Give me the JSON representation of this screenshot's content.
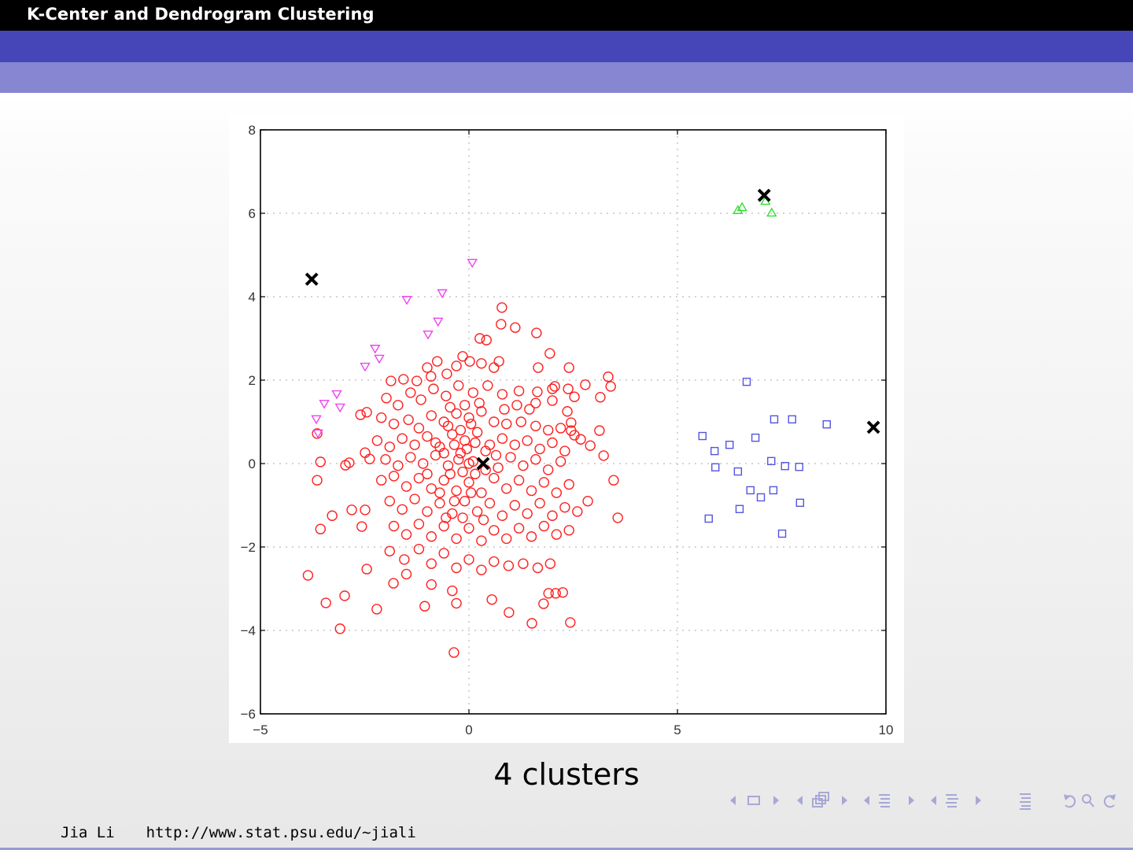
{
  "slide": {
    "title": "K-Center and Dendrogram Clustering",
    "caption": "4 clusters",
    "footer_author": "Jia Li",
    "footer_url": "http://www.stat.psu.edu/∼jiali"
  },
  "nav_icons": [
    "arrow-left-icon",
    "frame-icon",
    "arrow-right-icon",
    "arrow-left-icon",
    "frames-icon",
    "arrow-right-icon",
    "arrow-left-icon",
    "section-icon",
    "arrow-right-icon",
    "arrow-left-icon",
    "subsection-icon",
    "arrow-right-icon",
    "toc-icon",
    "undo-icon",
    "search-icon",
    "redo-icon"
  ],
  "colors": {
    "titlebar": "#000000",
    "band1": "#4646b9",
    "band2": "#8686d2",
    "nav": "#a8a8d6",
    "red": "#ff2020",
    "magenta": "#ee44ee",
    "green": "#33dd33",
    "blue": "#5555dd"
  },
  "chart_data": {
    "type": "scatter",
    "title": "",
    "xlabel": "",
    "ylabel": "",
    "xlim": [
      -5,
      10
    ],
    "ylim": [
      -6,
      8
    ],
    "xticks": [
      -5,
      0,
      5,
      10
    ],
    "xtick_labels": [
      "−5",
      "0",
      "5",
      "10"
    ],
    "yticks": [
      -6,
      -4,
      -2,
      0,
      2,
      4,
      6,
      8
    ],
    "ytick_labels": [
      "−6",
      "−4",
      "−2",
      "0",
      "2",
      "4",
      "6",
      "8"
    ],
    "grid": "dotted",
    "series": [
      {
        "name": "cluster-red",
        "marker": "circle",
        "color": "#ff2020",
        "points": [
          [
            -3.64,
            -0.4
          ],
          [
            -3.28,
            -1.25
          ],
          [
            -3.56,
            -1.57
          ],
          [
            -2.81,
            -1.11
          ],
          [
            -2.49,
            -1.11
          ],
          [
            -2.57,
            -1.51
          ],
          [
            -3.86,
            -2.68
          ],
          [
            -2.45,
            -2.53
          ],
          [
            -3.43,
            -3.34
          ],
          [
            -2.98,
            -3.17
          ],
          [
            -2.21,
            -3.49
          ],
          [
            -3.09,
            -3.96
          ],
          [
            -1.81,
            -2.87
          ],
          [
            -1.06,
            -3.42
          ],
          [
            -0.36,
            -4.53
          ],
          [
            0.55,
            -3.26
          ],
          [
            0.96,
            -3.57
          ],
          [
            1.51,
            -3.83
          ],
          [
            2.43,
            -3.81
          ],
          [
            1.79,
            -3.36
          ],
          [
            1.91,
            -3.11
          ],
          [
            2.25,
            -3.09
          ],
          [
            2.08,
            -3.11
          ],
          [
            3.47,
            -0.4
          ],
          [
            3.57,
            -1.3
          ],
          [
            3.23,
            0.19
          ],
          [
            3.4,
            1.85
          ],
          [
            3.34,
            2.08
          ],
          [
            3.15,
            1.59
          ],
          [
            2.79,
            1.89
          ],
          [
            2.91,
            0.43
          ],
          [
            3.13,
            0.79
          ],
          [
            0.79,
            3.74
          ],
          [
            0.77,
            3.34
          ],
          [
            1.11,
            3.26
          ],
          [
            1.62,
            3.13
          ],
          [
            0.42,
            2.96
          ],
          [
            0.26,
            3.0
          ],
          [
            1.94,
            2.64
          ],
          [
            1.66,
            2.3
          ],
          [
            2.4,
            2.3
          ],
          [
            1.64,
            1.72
          ],
          [
            2.0,
            1.79
          ],
          [
            2.38,
            1.79
          ],
          [
            2.53,
            1.6
          ],
          [
            2.06,
            1.85
          ],
          [
            1.6,
            1.45
          ],
          [
            2.0,
            1.51
          ],
          [
            2.36,
            1.25
          ],
          [
            2.45,
            0.98
          ],
          [
            2.45,
            0.79
          ],
          [
            2.53,
            0.68
          ],
          [
            2.68,
            0.58
          ],
          [
            -3.56,
            0.04
          ],
          [
            -3.64,
            0.72
          ],
          [
            -2.96,
            -0.04
          ],
          [
            -2.87,
            0.02
          ],
          [
            -2.49,
            0.26
          ],
          [
            -2.38,
            0.11
          ],
          [
            -2.6,
            1.17
          ],
          [
            -2.45,
            1.23
          ],
          [
            -1.87,
            1.98
          ],
          [
            -1.57,
            2.02
          ],
          [
            -1.25,
            1.98
          ],
          [
            -0.91,
            2.09
          ],
          [
            -0.53,
            2.15
          ],
          [
            -0.3,
            2.34
          ],
          [
            -0.15,
            2.57
          ],
          [
            0.02,
            2.45
          ],
          [
            0.3,
            2.4
          ],
          [
            0.6,
            2.3
          ],
          [
            0.72,
            2.45
          ],
          [
            -0.76,
            2.45
          ],
          [
            -1.0,
            2.3
          ],
          [
            -1.98,
            1.57
          ],
          [
            -1.7,
            1.4
          ],
          [
            -1.4,
            1.7
          ],
          [
            -1.15,
            1.53
          ],
          [
            -0.85,
            1.79
          ],
          [
            -0.55,
            1.62
          ],
          [
            -0.25,
            1.87
          ],
          [
            0.1,
            1.7
          ],
          [
            0.45,
            1.87
          ],
          [
            0.8,
            1.66
          ],
          [
            1.2,
            1.74
          ],
          [
            1.45,
            1.3
          ],
          [
            1.15,
            1.4
          ],
          [
            0.85,
            1.3
          ],
          [
            -2.1,
            1.1
          ],
          [
            -1.8,
            0.95
          ],
          [
            -1.45,
            1.05
          ],
          [
            -1.2,
            0.85
          ],
          [
            -0.9,
            1.15
          ],
          [
            -0.6,
            1.0
          ],
          [
            -0.3,
            1.2
          ],
          [
            0.0,
            1.1
          ],
          [
            0.3,
            1.25
          ],
          [
            0.6,
            1.0
          ],
          [
            0.9,
            0.95
          ],
          [
            1.25,
            1.0
          ],
          [
            1.6,
            0.9
          ],
          [
            1.9,
            0.8
          ],
          [
            2.2,
            0.85
          ],
          [
            -2.2,
            0.55
          ],
          [
            -1.9,
            0.4
          ],
          [
            -1.6,
            0.6
          ],
          [
            -1.3,
            0.45
          ],
          [
            -1.0,
            0.65
          ],
          [
            -0.7,
            0.4
          ],
          [
            -0.4,
            0.7
          ],
          [
            -0.1,
            0.55
          ],
          [
            0.2,
            0.75
          ],
          [
            0.5,
            0.45
          ],
          [
            0.8,
            0.6
          ],
          [
            1.1,
            0.45
          ],
          [
            1.4,
            0.55
          ],
          [
            1.7,
            0.35
          ],
          [
            2.0,
            0.5
          ],
          [
            2.3,
            0.3
          ],
          [
            -2.0,
            0.1
          ],
          [
            -1.7,
            -0.05
          ],
          [
            -1.4,
            0.15
          ],
          [
            -1.1,
            0.0
          ],
          [
            -0.8,
            0.2
          ],
          [
            -0.5,
            -0.05
          ],
          [
            -0.2,
            0.25
          ],
          [
            0.1,
            0.05
          ],
          [
            0.4,
            0.3
          ],
          [
            0.7,
            -0.1
          ],
          [
            1.0,
            0.15
          ],
          [
            1.3,
            -0.05
          ],
          [
            1.6,
            0.1
          ],
          [
            1.9,
            -0.15
          ],
          [
            2.2,
            0.05
          ],
          [
            -2.1,
            -0.4
          ],
          [
            -1.8,
            -0.3
          ],
          [
            -1.5,
            -0.55
          ],
          [
            -1.2,
            -0.35
          ],
          [
            -0.9,
            -0.6
          ],
          [
            -0.6,
            -0.4
          ],
          [
            -0.3,
            -0.65
          ],
          [
            0.0,
            -0.45
          ],
          [
            0.3,
            -0.7
          ],
          [
            0.6,
            -0.35
          ],
          [
            0.9,
            -0.6
          ],
          [
            1.2,
            -0.4
          ],
          [
            1.5,
            -0.65
          ],
          [
            1.8,
            -0.45
          ],
          [
            2.1,
            -0.7
          ],
          [
            2.4,
            -0.5
          ],
          [
            -1.9,
            -0.9
          ],
          [
            -1.6,
            -1.1
          ],
          [
            -1.3,
            -0.85
          ],
          [
            -1.0,
            -1.15
          ],
          [
            -0.7,
            -0.95
          ],
          [
            -0.4,
            -1.2
          ],
          [
            -0.1,
            -0.9
          ],
          [
            0.2,
            -1.15
          ],
          [
            0.5,
            -0.95
          ],
          [
            0.8,
            -1.25
          ],
          [
            1.1,
            -1.0
          ],
          [
            1.4,
            -1.2
          ],
          [
            1.7,
            -0.95
          ],
          [
            2.0,
            -1.25
          ],
          [
            2.3,
            -1.05
          ],
          [
            2.6,
            -1.15
          ],
          [
            2.85,
            -0.9
          ],
          [
            -1.8,
            -1.5
          ],
          [
            -1.5,
            -1.7
          ],
          [
            -1.2,
            -1.45
          ],
          [
            -0.9,
            -1.75
          ],
          [
            -0.6,
            -1.5
          ],
          [
            -0.3,
            -1.8
          ],
          [
            0.0,
            -1.55
          ],
          [
            0.3,
            -1.85
          ],
          [
            0.6,
            -1.6
          ],
          [
            0.9,
            -1.8
          ],
          [
            1.2,
            -1.55
          ],
          [
            1.5,
            -1.75
          ],
          [
            1.8,
            -1.5
          ],
          [
            2.1,
            -1.7
          ],
          [
            2.4,
            -1.6
          ],
          [
            -1.9,
            -2.1
          ],
          [
            -1.55,
            -2.3
          ],
          [
            -1.2,
            -2.05
          ],
          [
            -0.9,
            -2.4
          ],
          [
            -0.6,
            -2.15
          ],
          [
            -0.3,
            -2.5
          ],
          [
            0.0,
            -2.3
          ],
          [
            0.3,
            -2.55
          ],
          [
            0.6,
            -2.35
          ],
          [
            0.95,
            -2.45
          ],
          [
            1.3,
            -2.4
          ],
          [
            1.65,
            -2.5
          ],
          [
            1.95,
            -2.4
          ],
          [
            -1.5,
            -2.65
          ],
          [
            -0.4,
            -3.05
          ],
          [
            -0.3,
            -3.35
          ],
          [
            -0.9,
            -2.9
          ],
          [
            -0.5,
            0.9
          ],
          [
            -0.2,
            0.8
          ],
          [
            0.05,
            0.95
          ],
          [
            -0.35,
            0.45
          ],
          [
            -0.05,
            0.35
          ],
          [
            0.15,
            0.5
          ],
          [
            -0.6,
            0.25
          ],
          [
            -0.25,
            0.1
          ],
          [
            -0.45,
            -0.25
          ],
          [
            -0.15,
            -0.2
          ],
          [
            0.15,
            -0.25
          ],
          [
            -0.7,
            -0.7
          ],
          [
            -0.35,
            -0.9
          ],
          [
            0.05,
            -0.7
          ],
          [
            -0.1,
            1.4
          ],
          [
            0.25,
            1.45
          ],
          [
            -0.45,
            1.35
          ],
          [
            0.0,
            0.0
          ],
          [
            -0.8,
            0.5
          ],
          [
            0.4,
            -0.15
          ],
          [
            -1.0,
            -0.25
          ],
          [
            0.65,
            0.2
          ],
          [
            -0.15,
            -1.3
          ],
          [
            0.35,
            -1.35
          ],
          [
            -0.55,
            -1.3
          ]
        ]
      },
      {
        "name": "cluster-magenta",
        "marker": "triangle-down",
        "color": "#ee44ee",
        "points": [
          [
            0.08,
            4.81
          ],
          [
            -0.64,
            4.08
          ],
          [
            -1.49,
            3.92
          ],
          [
            -0.74,
            3.4
          ],
          [
            -0.98,
            3.09
          ],
          [
            -2.25,
            2.75
          ],
          [
            -2.15,
            2.51
          ],
          [
            -2.49,
            2.32
          ],
          [
            -3.17,
            1.66
          ],
          [
            -3.47,
            1.43
          ],
          [
            -3.09,
            1.34
          ],
          [
            -3.66,
            1.06
          ],
          [
            -3.62,
            0.72
          ]
        ]
      },
      {
        "name": "cluster-green",
        "marker": "triangle-up",
        "color": "#33dd33",
        "points": [
          [
            6.45,
            6.08
          ],
          [
            6.55,
            6.15
          ],
          [
            7.11,
            6.3
          ],
          [
            7.26,
            6.02
          ]
        ]
      },
      {
        "name": "cluster-blue",
        "marker": "square",
        "color": "#5555dd",
        "points": [
          [
            6.66,
            1.96
          ],
          [
            7.32,
            1.06
          ],
          [
            7.75,
            1.06
          ],
          [
            8.58,
            0.94
          ],
          [
            5.6,
            0.66
          ],
          [
            6.87,
            0.62
          ],
          [
            6.25,
            0.45
          ],
          [
            5.89,
            0.3
          ],
          [
            7.25,
            0.06
          ],
          [
            7.58,
            -0.06
          ],
          [
            7.92,
            -0.08
          ],
          [
            5.91,
            -0.09
          ],
          [
            6.45,
            -0.19
          ],
          [
            6.75,
            -0.64
          ],
          [
            7.3,
            -0.64
          ],
          [
            7.0,
            -0.81
          ],
          [
            7.94,
            -0.94
          ],
          [
            6.49,
            -1.09
          ],
          [
            5.75,
            -1.32
          ],
          [
            7.51,
            -1.68
          ]
        ]
      },
      {
        "name": "centers",
        "marker": "x",
        "color": "#000000",
        "points": [
          [
            -3.77,
            4.42
          ],
          [
            0.34,
            0.0
          ],
          [
            7.08,
            6.43
          ],
          [
            9.7,
            0.87
          ]
        ]
      }
    ]
  }
}
